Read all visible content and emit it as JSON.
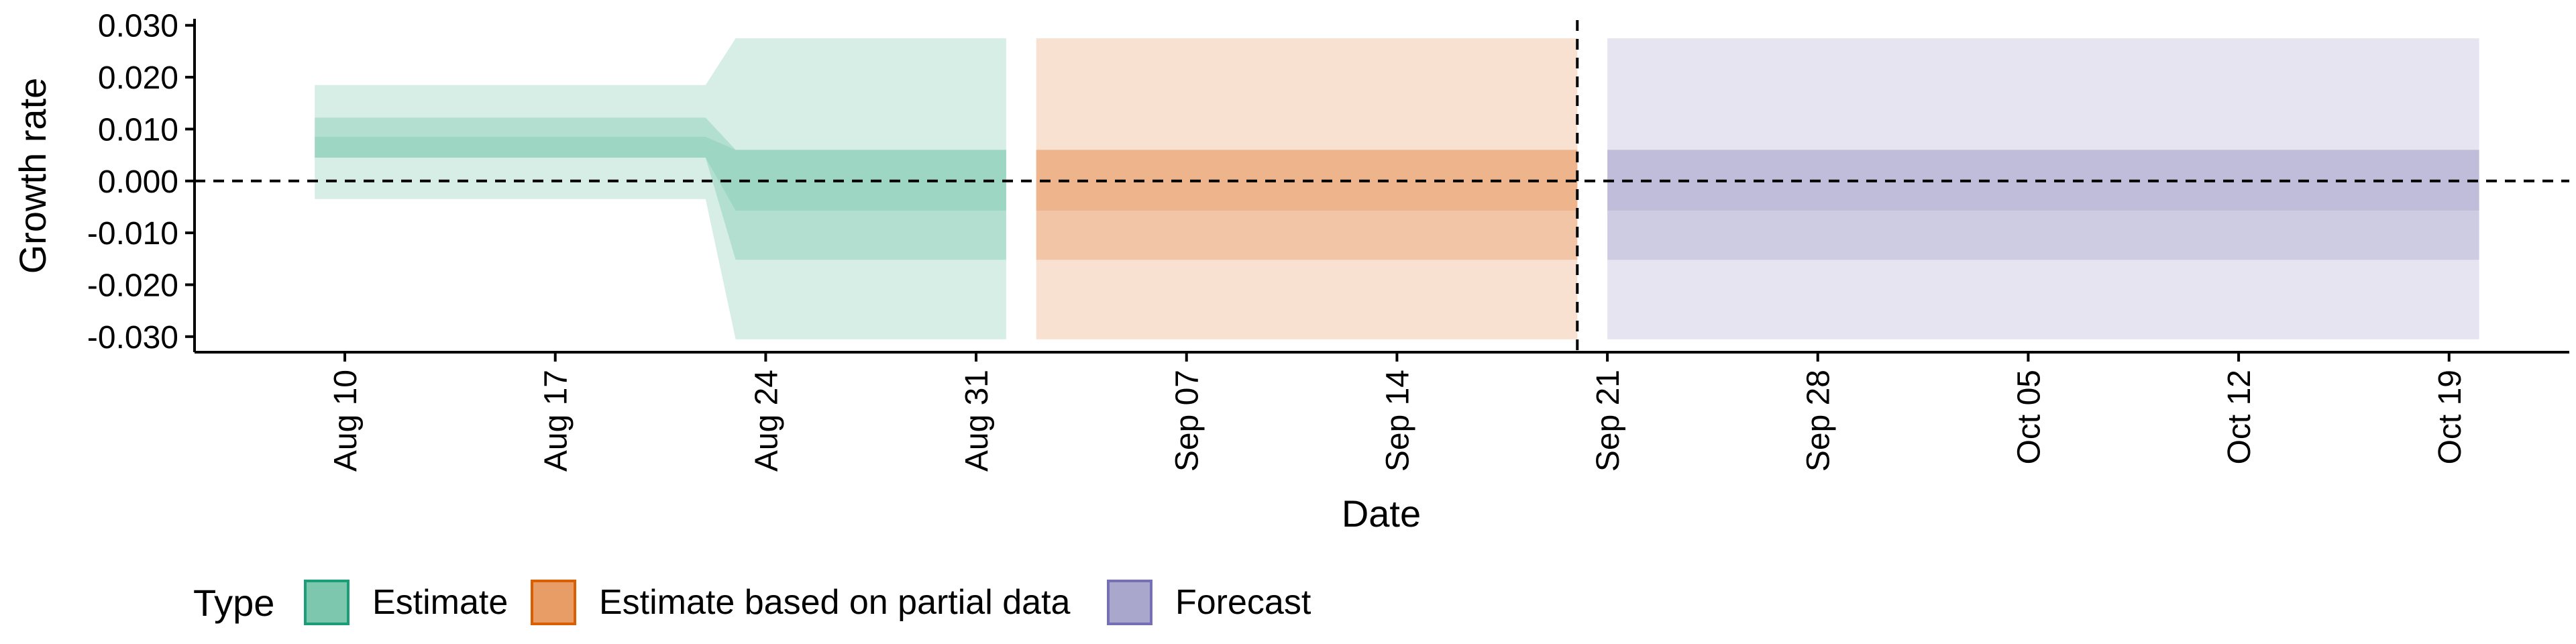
{
  "chart_data": {
    "type": "area",
    "xlabel": "Date",
    "ylabel": "Growth rate",
    "x_ticks": [
      "2020-08-10",
      "2020-08-17",
      "2020-08-24",
      "2020-08-31",
      "2020-09-07",
      "2020-09-14",
      "2020-09-21",
      "2020-09-28",
      "2020-10-05",
      "2020-10-12",
      "2020-10-19"
    ],
    "x_tick_labels": [
      "Aug 10",
      "Aug 17",
      "Aug 24",
      "Aug 31",
      "Sep 07",
      "Sep 14",
      "Sep 21",
      "Sep 28",
      "Oct 05",
      "Oct 12",
      "Oct 19"
    ],
    "xlim": [
      "2020-08-05",
      "2020-10-23"
    ],
    "y_ticks": [
      0.03,
      0.02,
      0.01,
      0.0,
      -0.01,
      -0.02,
      -0.03
    ],
    "y_tick_labels": [
      "0.030",
      "0.020",
      "0.010",
      "0.000",
      "-0.010",
      "-0.020",
      "-0.030"
    ],
    "ylim": [
      -0.033,
      0.031
    ],
    "grid": false,
    "reference_lines": [
      {
        "axis": "y",
        "value": 0.0,
        "style": "dashed"
      },
      {
        "axis": "x",
        "value": "2020-09-20",
        "style": "dashed"
      }
    ],
    "legend": {
      "title": "Type",
      "position": "bottom-left",
      "entries": [
        "Estimate",
        "Estimate based on partial data",
        "Forecast"
      ]
    },
    "series": [
      {
        "name": "Estimate",
        "color": "#1b9e77",
        "fill": "#7cc7ae",
        "points": [
          {
            "x": "2020-08-09",
            "upper90": 0.0185,
            "upper50": 0.0122,
            "upper20": 0.0085,
            "lower20": 0.0045,
            "lower50": 0.0045,
            "lower90": -0.0035
          },
          {
            "x": "2020-08-22",
            "upper90": 0.0185,
            "upper50": 0.0122,
            "upper20": 0.0085,
            "lower20": 0.0045,
            "lower50": 0.0045,
            "lower90": -0.0035
          },
          {
            "x": "2020-08-23",
            "upper90": 0.0275,
            "upper50": 0.006,
            "upper20": 0.006,
            "lower20": -0.0057,
            "lower50": -0.0152,
            "lower90": -0.0305
          },
          {
            "x": "2020-09-01",
            "upper90": 0.0275,
            "upper50": 0.006,
            "upper20": 0.006,
            "lower20": -0.0057,
            "lower50": -0.0152,
            "lower90": -0.0305
          }
        ]
      },
      {
        "name": "Estimate based on partial data",
        "color": "#d95f02",
        "fill": "#e89c66",
        "points": [
          {
            "x": "2020-09-02",
            "upper90": 0.0275,
            "upper50": 0.006,
            "upper20": 0.006,
            "lower20": -0.0057,
            "lower50": -0.0152,
            "lower90": -0.0305
          },
          {
            "x": "2020-09-20",
            "upper90": 0.0275,
            "upper50": 0.006,
            "upper20": 0.006,
            "lower20": -0.0057,
            "lower50": -0.0152,
            "lower90": -0.0305
          }
        ]
      },
      {
        "name": "Forecast",
        "color": "#7570b3",
        "fill": "#aaa7cd",
        "points": [
          {
            "x": "2020-09-21",
            "upper90": 0.0275,
            "upper50": 0.006,
            "upper20": 0.006,
            "lower20": -0.0057,
            "lower50": -0.0152,
            "lower90": -0.0305
          },
          {
            "x": "2020-10-20",
            "upper90": 0.0275,
            "upper50": 0.006,
            "upper20": 0.006,
            "lower20": -0.0057,
            "lower50": -0.0152,
            "lower90": -0.0305
          }
        ]
      }
    ]
  }
}
